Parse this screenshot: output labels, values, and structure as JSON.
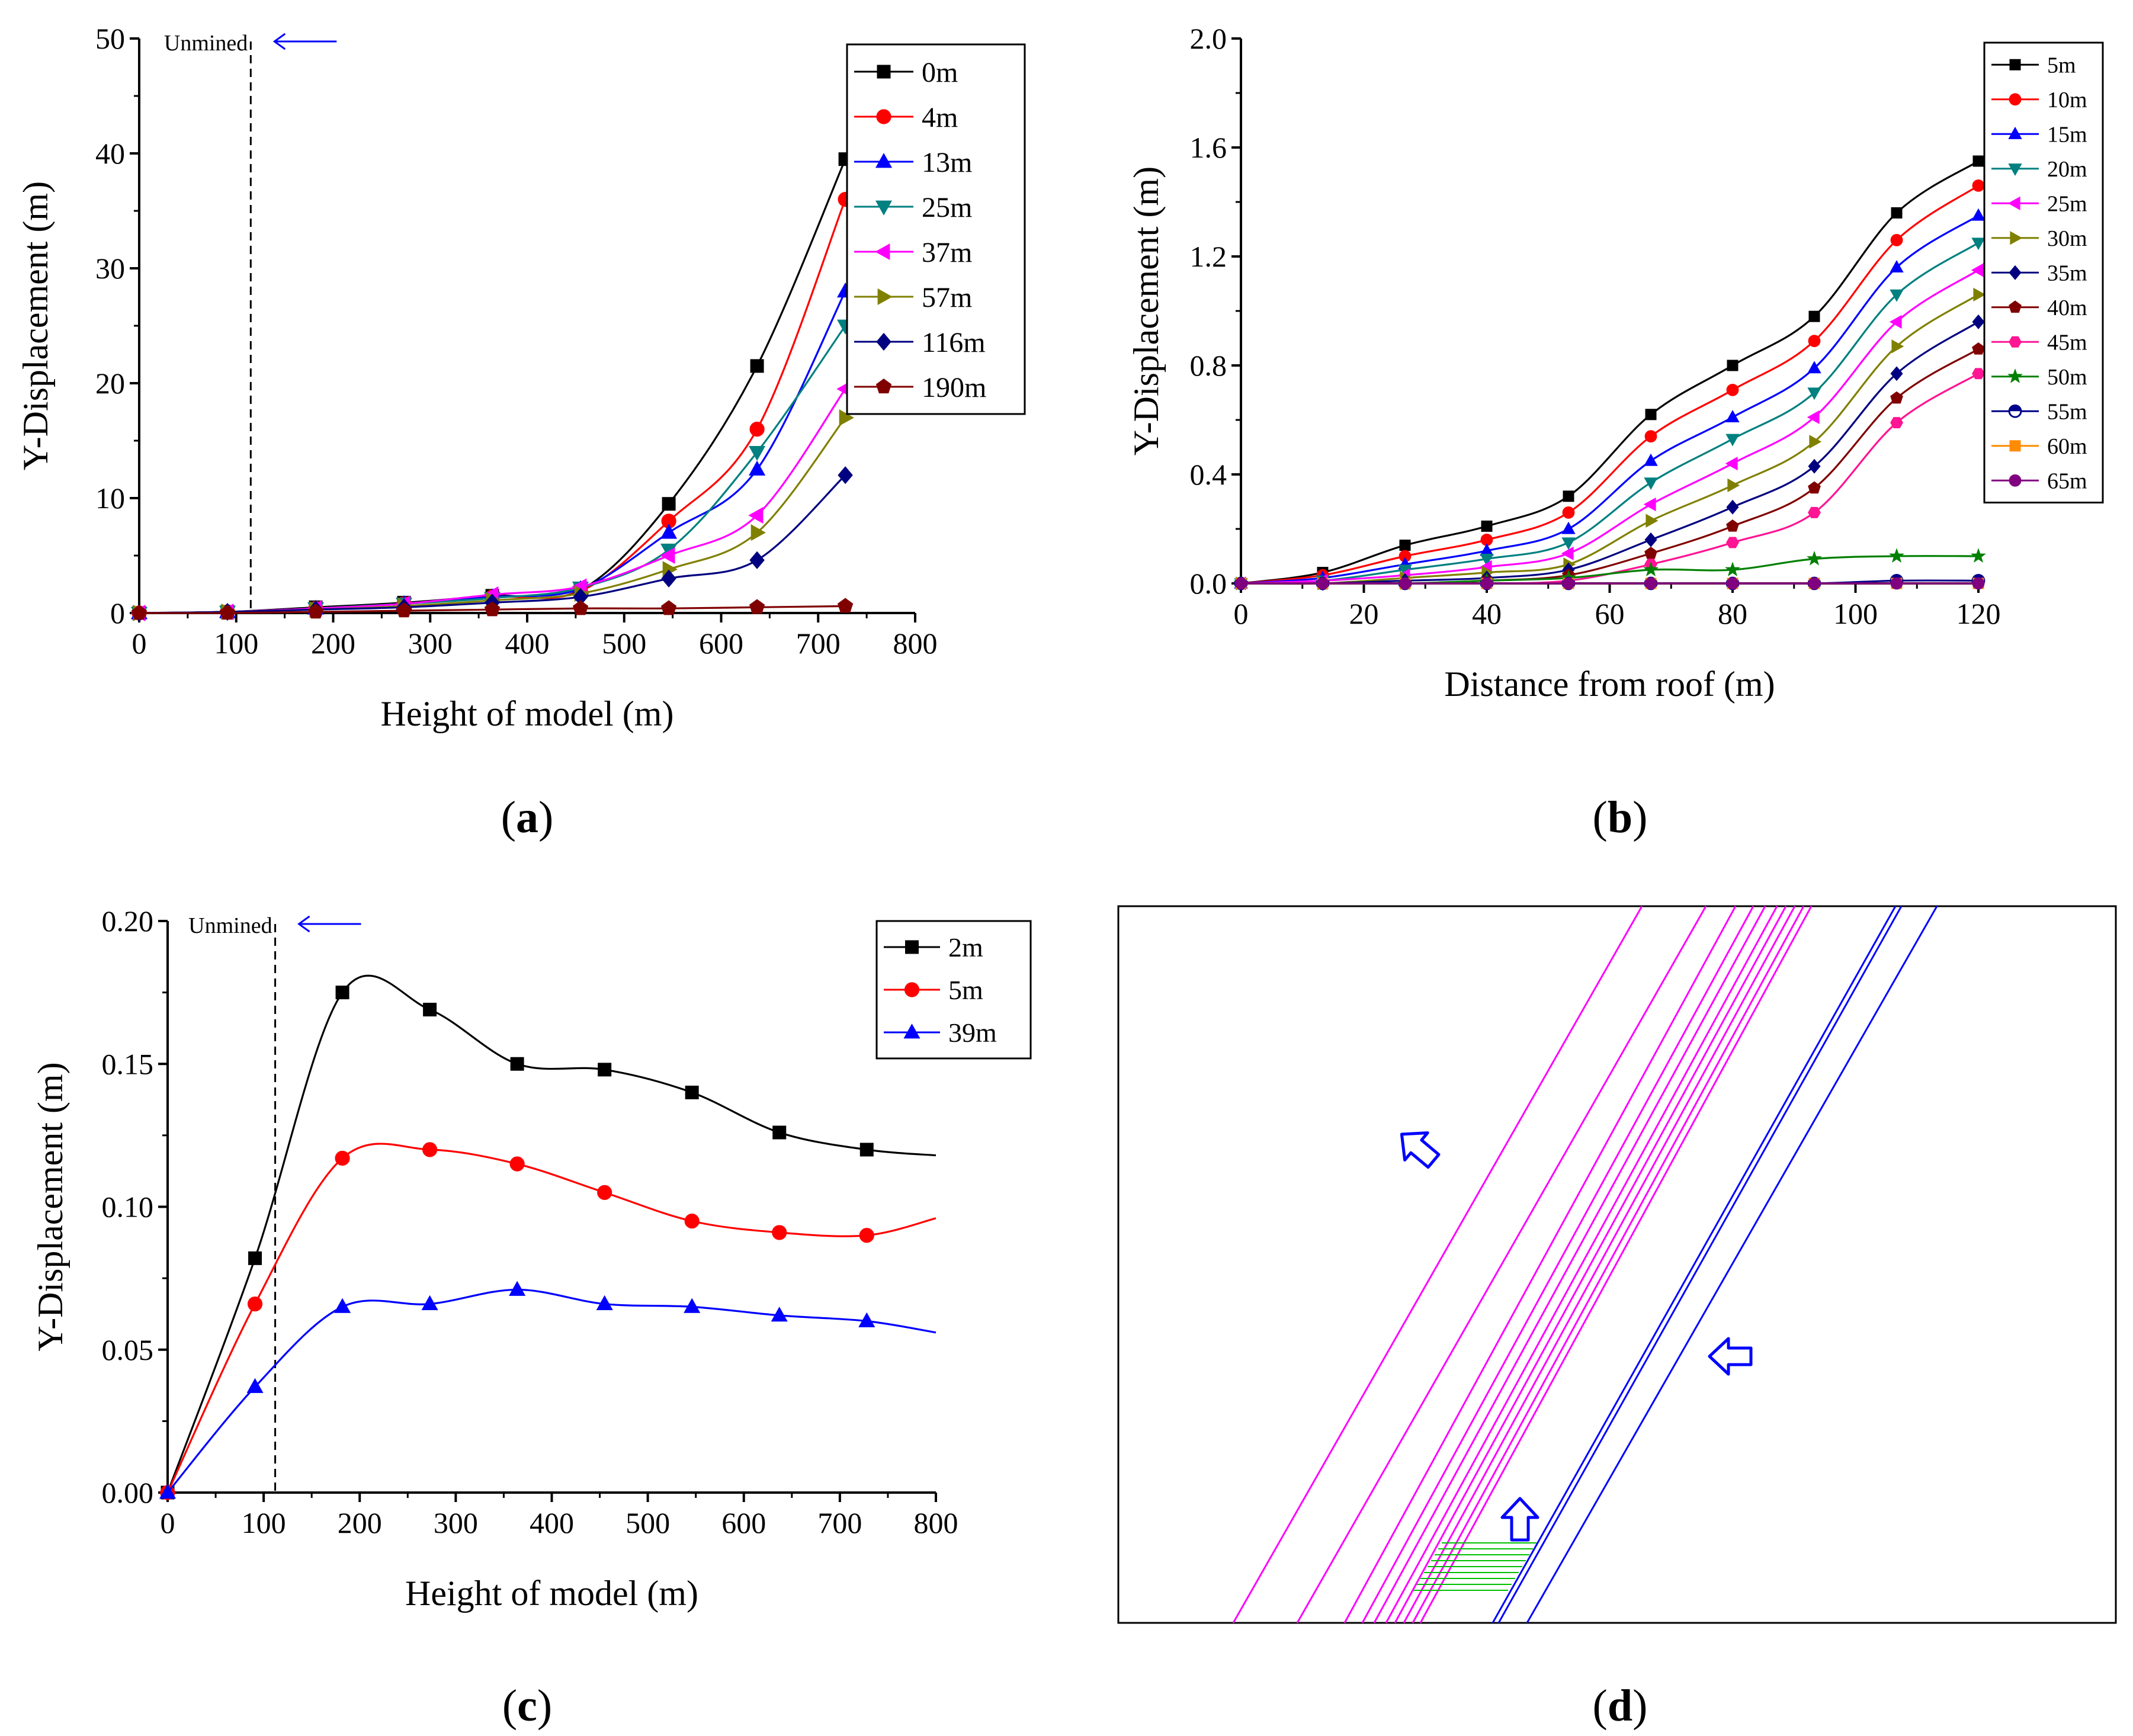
{
  "panels": {
    "a": {
      "letter": "a"
    },
    "b": {
      "letter": "b"
    },
    "c": {
      "letter": "c"
    },
    "d": {
      "letter": "d"
    }
  },
  "chart_data": [
    {
      "id": "a",
      "type": "line",
      "xlabel": "Height of model (m)",
      "ylabel": "Y-Displacement (m)",
      "xlim": [
        0,
        800
      ],
      "ylim": [
        0,
        50
      ],
      "xticks": [
        0,
        100,
        200,
        300,
        400,
        500,
        600,
        700,
        800
      ],
      "yticks": [
        0,
        10,
        20,
        30,
        40,
        50
      ],
      "legend_position": "top-right",
      "annotation": {
        "text": "Unmined",
        "x": 115,
        "arrow": "left"
      },
      "series": [
        {
          "name": "0m",
          "color": "#000000",
          "marker": "square",
          "x": [
            0,
            91,
            182,
            273,
            364,
            455,
            546,
            637,
            728
          ],
          "y": [
            0,
            0.1,
            0.5,
            0.9,
            1.5,
            2.0,
            9.5,
            21.5,
            39.5
          ]
        },
        {
          "name": "4m",
          "color": "#ff0000",
          "marker": "circle",
          "x": [
            0,
            91,
            182,
            273,
            364,
            455,
            546,
            637,
            728
          ],
          "y": [
            0,
            0.1,
            0.4,
            0.8,
            1.4,
            1.9,
            8.0,
            16.0,
            36.0
          ]
        },
        {
          "name": "13m",
          "color": "#0000ff",
          "marker": "triangle-up",
          "x": [
            0,
            91,
            182,
            273,
            364,
            455,
            546,
            637,
            728
          ],
          "y": [
            0,
            0.1,
            0.4,
            0.8,
            1.4,
            2.1,
            7.0,
            12.5,
            28.0
          ]
        },
        {
          "name": "25m",
          "color": "#008080",
          "marker": "triangle-down",
          "x": [
            0,
            91,
            182,
            273,
            364,
            455,
            546,
            637,
            728
          ],
          "y": [
            0,
            0.1,
            0.4,
            0.8,
            1.3,
            2.2,
            5.5,
            14.0,
            25.0
          ]
        },
        {
          "name": "37m",
          "color": "#ff00ff",
          "marker": "triangle-left",
          "x": [
            0,
            91,
            182,
            273,
            364,
            455,
            546,
            637,
            728
          ],
          "y": [
            0,
            0.1,
            0.4,
            0.8,
            1.6,
            2.3,
            5.0,
            8.5,
            19.5
          ]
        },
        {
          "name": "57m",
          "color": "#808000",
          "marker": "triangle-right",
          "x": [
            0,
            91,
            182,
            273,
            364,
            455,
            546,
            637,
            728
          ],
          "y": [
            0,
            0.1,
            0.3,
            0.6,
            1.1,
            1.7,
            3.8,
            7.0,
            17.0
          ]
        },
        {
          "name": "116m",
          "color": "#000080",
          "marker": "diamond",
          "x": [
            0,
            91,
            182,
            273,
            364,
            455,
            546,
            637,
            728
          ],
          "y": [
            0,
            0.1,
            0.3,
            0.5,
            0.9,
            1.4,
            3.0,
            4.6,
            12.0
          ]
        },
        {
          "name": "190m",
          "color": "#800000",
          "marker": "pentagon",
          "x": [
            0,
            91,
            182,
            273,
            364,
            455,
            546,
            637,
            728
          ],
          "y": [
            0,
            0.0,
            0.1,
            0.2,
            0.3,
            0.4,
            0.4,
            0.5,
            0.6
          ]
        }
      ]
    },
    {
      "id": "b",
      "type": "line",
      "xlabel": "Distance from roof (m)",
      "ylabel": "Y-Displacement (m)",
      "xlim": [
        0,
        120
      ],
      "ylim": [
        0,
        2.0
      ],
      "xticks": [
        0,
        20,
        40,
        60,
        80,
        100,
        120
      ],
      "yticks": [
        0.0,
        0.4,
        0.8,
        1.2,
        1.6,
        2.0
      ],
      "tick_decimals_y": 1,
      "legend_position": "top-right",
      "series": [
        {
          "name": "5m",
          "color": "#000000",
          "marker": "square",
          "x": [
            0,
            13.3,
            26.7,
            40,
            53.3,
            66.7,
            80,
            93.3,
            106.7,
            120
          ],
          "y": [
            0,
            0.04,
            0.14,
            0.21,
            0.32,
            0.62,
            0.8,
            0.98,
            1.36,
            1.55
          ]
        },
        {
          "name": "10m",
          "color": "#ff0000",
          "marker": "circle",
          "x": [
            0,
            13.3,
            26.7,
            40,
            53.3,
            66.7,
            80,
            93.3,
            106.7,
            120
          ],
          "y": [
            0,
            0.03,
            0.1,
            0.16,
            0.26,
            0.54,
            0.71,
            0.89,
            1.26,
            1.46
          ]
        },
        {
          "name": "15m",
          "color": "#0000ff",
          "marker": "triangle-up",
          "x": [
            0,
            13.3,
            26.7,
            40,
            53.3,
            66.7,
            80,
            93.3,
            106.7,
            120
          ],
          "y": [
            0,
            0.02,
            0.07,
            0.12,
            0.2,
            0.45,
            0.61,
            0.79,
            1.16,
            1.35
          ]
        },
        {
          "name": "20m",
          "color": "#008080",
          "marker": "triangle-down",
          "x": [
            0,
            13.3,
            26.7,
            40,
            53.3,
            66.7,
            80,
            93.3,
            106.7,
            120
          ],
          "y": [
            0,
            0.01,
            0.05,
            0.09,
            0.15,
            0.37,
            0.53,
            0.7,
            1.06,
            1.25
          ]
        },
        {
          "name": "25m",
          "color": "#ff00ff",
          "marker": "triangle-left",
          "x": [
            0,
            13.3,
            26.7,
            40,
            53.3,
            66.7,
            80,
            93.3,
            106.7,
            120
          ],
          "y": [
            0,
            0.01,
            0.03,
            0.06,
            0.11,
            0.29,
            0.44,
            0.61,
            0.96,
            1.15
          ]
        },
        {
          "name": "30m",
          "color": "#808000",
          "marker": "triangle-right",
          "x": [
            0,
            13.3,
            26.7,
            40,
            53.3,
            66.7,
            80,
            93.3,
            106.7,
            120
          ],
          "y": [
            0,
            0.0,
            0.02,
            0.04,
            0.07,
            0.23,
            0.36,
            0.52,
            0.87,
            1.06
          ]
        },
        {
          "name": "35m",
          "color": "#000080",
          "marker": "diamond",
          "x": [
            0,
            13.3,
            26.7,
            40,
            53.3,
            66.7,
            80,
            93.3,
            106.7,
            120
          ],
          "y": [
            0,
            0.0,
            0.01,
            0.02,
            0.05,
            0.16,
            0.28,
            0.43,
            0.77,
            0.96
          ]
        },
        {
          "name": "40m",
          "color": "#800000",
          "marker": "pentagon",
          "x": [
            0,
            13.3,
            26.7,
            40,
            53.3,
            66.7,
            80,
            93.3,
            106.7,
            120
          ],
          "y": [
            0,
            0.0,
            0.0,
            0.01,
            0.03,
            0.11,
            0.21,
            0.35,
            0.68,
            0.86
          ]
        },
        {
          "name": "45m",
          "color": "#ff1493",
          "marker": "hexagon",
          "x": [
            0,
            13.3,
            26.7,
            40,
            53.3,
            66.7,
            80,
            93.3,
            106.7,
            120
          ],
          "y": [
            0,
            0.0,
            0.0,
            0.0,
            0.01,
            0.07,
            0.15,
            0.26,
            0.59,
            0.77
          ]
        },
        {
          "name": "50m",
          "color": "#008000",
          "marker": "star",
          "x": [
            0,
            13.3,
            26.7,
            40,
            53.3,
            66.7,
            80,
            93.3,
            106.7,
            120
          ],
          "y": [
            0,
            0.0,
            0.0,
            0.01,
            0.02,
            0.05,
            0.05,
            0.09,
            0.1,
            0.1
          ]
        },
        {
          "name": "55m",
          "color": "#00008b",
          "marker": "half-circle",
          "x": [
            0,
            13.3,
            26.7,
            40,
            53.3,
            66.7,
            80,
            93.3,
            106.7,
            120
          ],
          "y": [
            0,
            0.0,
            0.0,
            0.0,
            0.0,
            0.0,
            0.0,
            0.0,
            0.01,
            0.01
          ]
        },
        {
          "name": "60m",
          "color": "#ff8c00",
          "marker": "square",
          "x": [
            0,
            13.3,
            26.7,
            40,
            53.3,
            66.7,
            80,
            93.3,
            106.7,
            120
          ],
          "y": [
            0,
            0.0,
            0.0,
            0.0,
            0.0,
            0.0,
            0.0,
            0.0,
            0.0,
            0.0
          ]
        },
        {
          "name": "65m",
          "color": "#800080",
          "marker": "circle",
          "x": [
            0,
            13.3,
            26.7,
            40,
            53.3,
            66.7,
            80,
            93.3,
            106.7,
            120
          ],
          "y": [
            0,
            0.0,
            0.0,
            0.0,
            0.0,
            0.0,
            0.0,
            0.0,
            0.0,
            0.0
          ]
        }
      ]
    },
    {
      "id": "c",
      "type": "line",
      "xlabel": "Height of model (m)",
      "ylabel": "Y-Displacement (m)",
      "xlim": [
        0,
        800
      ],
      "ylim": [
        0,
        0.2
      ],
      "xticks": [
        0,
        100,
        200,
        300,
        400,
        500,
        600,
        700,
        800
      ],
      "yticks": [
        0.0,
        0.05,
        0.1,
        0.15,
        0.2
      ],
      "tick_decimals_y": 2,
      "legend_position": "top-right",
      "annotation": {
        "text": "Unmined",
        "x": 112,
        "arrow": "left"
      },
      "series": [
        {
          "name": "2m",
          "color": "#000000",
          "marker": "square",
          "x": [
            0,
            91,
            182,
            273,
            364,
            455,
            546,
            637,
            728,
            800
          ],
          "y": [
            0,
            0.082,
            0.175,
            0.169,
            0.15,
            0.148,
            0.14,
            0.126,
            0.12,
            0.118
          ],
          "marker_count": 9
        },
        {
          "name": "5m",
          "color": "#ff0000",
          "marker": "circle",
          "x": [
            0,
            91,
            182,
            273,
            364,
            455,
            546,
            637,
            728,
            800
          ],
          "y": [
            0,
            0.066,
            0.117,
            0.12,
            0.115,
            0.105,
            0.095,
            0.091,
            0.09,
            0.096
          ],
          "marker_count": 9
        },
        {
          "name": "39m",
          "color": "#0000ff",
          "marker": "triangle-up",
          "x": [
            0,
            91,
            182,
            273,
            364,
            455,
            546,
            637,
            728,
            800
          ],
          "y": [
            0,
            0.037,
            0.065,
            0.066,
            0.071,
            0.066,
            0.065,
            0.062,
            0.06,
            0.056
          ],
          "marker_count": 9
        }
      ]
    }
  ],
  "diagram_d": {
    "magenta": "#ff00ff",
    "blue": "#0000ff",
    "green": "#00c000"
  }
}
